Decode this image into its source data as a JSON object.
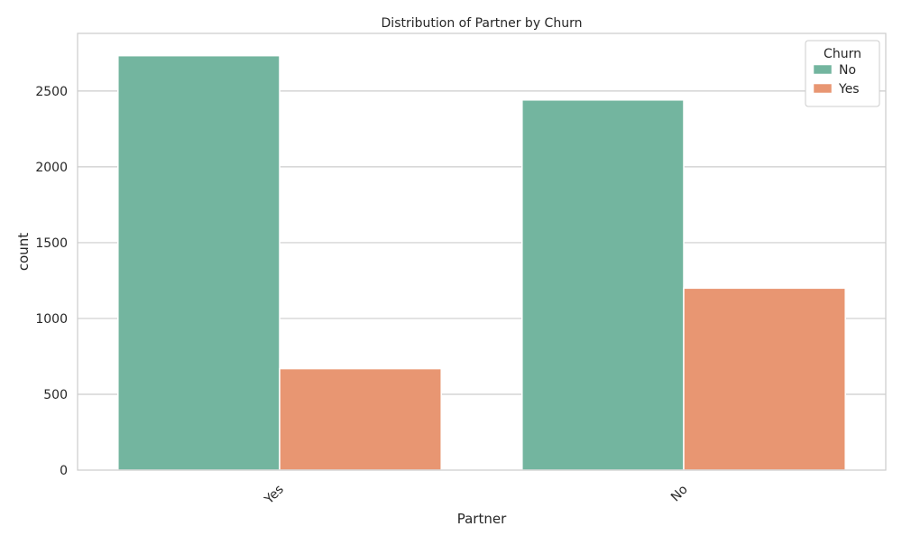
{
  "chart_data": {
    "type": "bar",
    "title": "Distribution of Partner by Churn",
    "xlabel": "Partner",
    "ylabel": "count",
    "categories": [
      "Yes",
      "No"
    ],
    "series": [
      {
        "name": "No",
        "values": [
          2733,
          2441
        ],
        "color": "#73b59f"
      },
      {
        "name": "Yes",
        "values": [
          669,
          1200
        ],
        "color": "#e89672"
      }
    ],
    "ylim": [
      0,
      2880
    ],
    "yticks": [
      0,
      500,
      1000,
      1500,
      2000,
      2500
    ],
    "grid": "horizontal",
    "legend": {
      "title": "Churn",
      "placement": "top-right"
    },
    "xtick_rotation": "45deg"
  }
}
